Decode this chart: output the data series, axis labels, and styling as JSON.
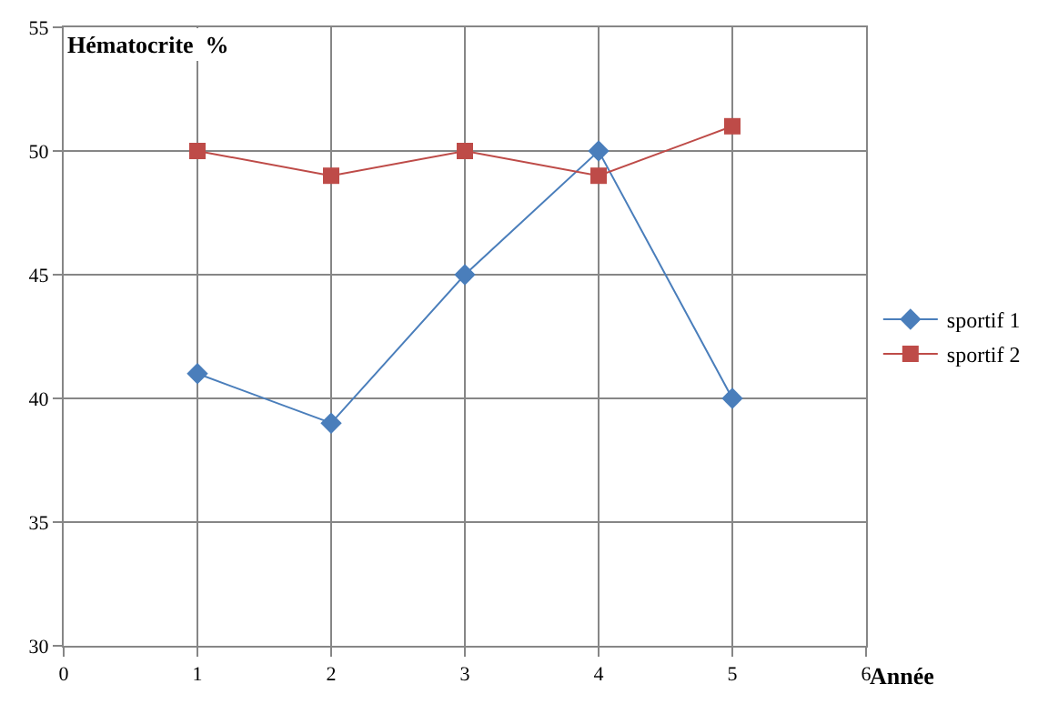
{
  "chart_data": {
    "type": "line",
    "title": "Hématocrite  %",
    "xlabel": "Année",
    "x": [
      1,
      2,
      3,
      4,
      5
    ],
    "series": [
      {
        "name": "sportif 1",
        "color": "#4a7ebb",
        "marker": "diamond",
        "values": [
          41,
          39,
          45,
          50,
          40
        ]
      },
      {
        "name": "sportif 2",
        "color": "#be4b48",
        "marker": "square",
        "values": [
          50,
          49,
          50,
          49,
          51
        ]
      }
    ],
    "xlim": [
      0,
      6
    ],
    "xticks": [
      0,
      1,
      2,
      3,
      4,
      5,
      6
    ],
    "ylim": [
      30,
      55
    ],
    "yticks": [
      30,
      35,
      40,
      45,
      50,
      55
    ],
    "grid": true,
    "legend": "right",
    "line_style": "solid"
  }
}
